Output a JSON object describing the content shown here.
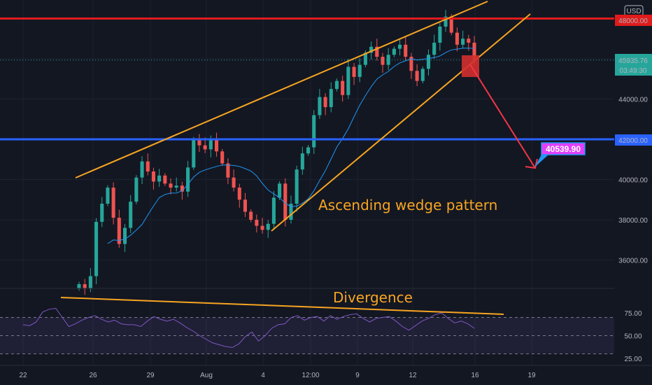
{
  "currency_label": "USD",
  "colors": {
    "background": "#131722",
    "candle_up": "#26a69a",
    "candle_down": "#ef5350",
    "moving_average": "#2196f3",
    "resistance_line": "#e01b1b",
    "support_line": "#2962ff",
    "wedge_line": "#f7a521",
    "annotation_text": "#f7a521",
    "projection_arrow": "#f23645",
    "target_badge": "#e040fb",
    "rsi_line": "#7e57c2"
  },
  "price_badges": {
    "resistance": "48000.00",
    "current_price": "45935.76",
    "countdown": "03:49:30",
    "support": "42000.00",
    "target": "40539.90"
  },
  "chart_data": [
    {
      "type": "candlestick",
      "series_name": "",
      "x_tick_labels": [
        "22",
        "26",
        "29",
        "Aug",
        "4",
        "12:00",
        "9",
        "12",
        "16",
        "19"
      ],
      "y_tick_labels": [
        "36000.00",
        "38000.00",
        "40000.00",
        "44000.00"
      ],
      "ylim": [
        34200,
        49000
      ],
      "horizontal_levels": [
        {
          "value": 48000,
          "color": "#e01b1b"
        },
        {
          "value": 42000,
          "color": "#2962ff"
        }
      ],
      "annotations": [
        "Ascending wedge pattern"
      ],
      "target_price": 40539.9,
      "current_price": 45935.76,
      "close_prices": [
        34800,
        34600,
        35200,
        37900,
        38800,
        39600,
        38100,
        36800,
        37600,
        38900,
        40100,
        40900,
        40400,
        39900,
        40200,
        39800,
        39600,
        39700,
        39400,
        40600,
        42000,
        41700,
        41500,
        42000,
        41400,
        40800,
        40100,
        39600,
        39000,
        38400,
        38000,
        37700,
        37500,
        37800,
        39100,
        39800,
        38000,
        38800,
        40500,
        41300,
        41600,
        43200,
        44100,
        43600,
        44500,
        44900,
        44200,
        45600,
        45100,
        45700,
        46300,
        46600,
        46100,
        45700,
        46200,
        46500,
        46700,
        46100,
        45400,
        44900,
        45500,
        46200,
        46800,
        47600,
        48100,
        47300,
        46700,
        47000,
        46800,
        45936
      ]
    },
    {
      "type": "line",
      "series_name": "",
      "title": "",
      "y_tick_labels": [
        "75.00",
        "50.00",
        "25.00"
      ],
      "ylim": [
        20,
        85
      ],
      "bands": [
        70,
        50,
        30
      ],
      "annotations": [
        "Divergence"
      ],
      "values": [
        62,
        61,
        65,
        76,
        79,
        80,
        70,
        60,
        63,
        67,
        70,
        72,
        68,
        65,
        67,
        63,
        62,
        62,
        60,
        66,
        71,
        68,
        66,
        68,
        64,
        59,
        55,
        50,
        46,
        42,
        40,
        38,
        37,
        41,
        49,
        54,
        44,
        50,
        58,
        62,
        63,
        70,
        72,
        67,
        70,
        71,
        66,
        72,
        68,
        71,
        73,
        74,
        69,
        65,
        69,
        70,
        71,
        66,
        60,
        56,
        61,
        66,
        69,
        73,
        75,
        69,
        64,
        66,
        63,
        58
      ]
    }
  ]
}
